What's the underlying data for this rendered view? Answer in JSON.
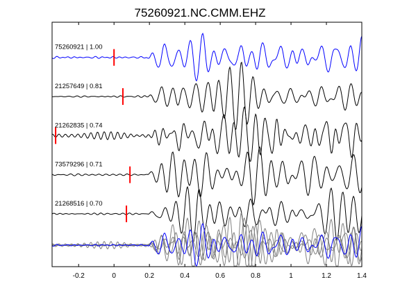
{
  "chart_data": {
    "type": "line",
    "title": "75260921.NC.CMM.EHZ",
    "xlabel": "",
    "ylabel": "",
    "xlim": [
      -0.35,
      1.4
    ],
    "x_ticks": [
      -0.2,
      0,
      0.2,
      0.4,
      0.6,
      0.8,
      1,
      1.2,
      1.4
    ],
    "x_tick_labels": [
      "-0.2",
      "0",
      "0.2",
      "0.4",
      "0.6",
      "0.8",
      "1",
      "1.2",
      "1.4"
    ],
    "grid": false,
    "legend": "none",
    "series": [
      {
        "name": "75260921 | 1.00",
        "label": "75260921 | 1.00",
        "color": "#0000ff",
        "pick_time": 0.0,
        "pick_color": "#ff0000",
        "amp_scale": 1.0
      },
      {
        "name": "21257649 | 0.81",
        "label": "21257649 | 0.81",
        "color": "#000000",
        "pick_time": 0.05,
        "pick_color": "#ff0000",
        "amp_scale": 0.95
      },
      {
        "name": "21262835 | 0.74",
        "label": "21262835 | 0.74",
        "color": "#000000",
        "pick_time": -0.33,
        "pick_color": "#ff0000",
        "amp_scale": 0.95
      },
      {
        "name": "73579296 | 0.71",
        "label": "73579296 | 0.71",
        "color": "#000000",
        "pick_time": 0.09,
        "pick_color": "#ff0000",
        "amp_scale": 1.0
      },
      {
        "name": "21268516 | 0.70",
        "label": "21268516 | 0.70",
        "color": "#000000",
        "pick_time": 0.07,
        "pick_color": "#ff0000",
        "amp_scale": 0.9
      }
    ],
    "overlay": {
      "reference_color": "#0000ff",
      "others_color": "#808080"
    }
  }
}
